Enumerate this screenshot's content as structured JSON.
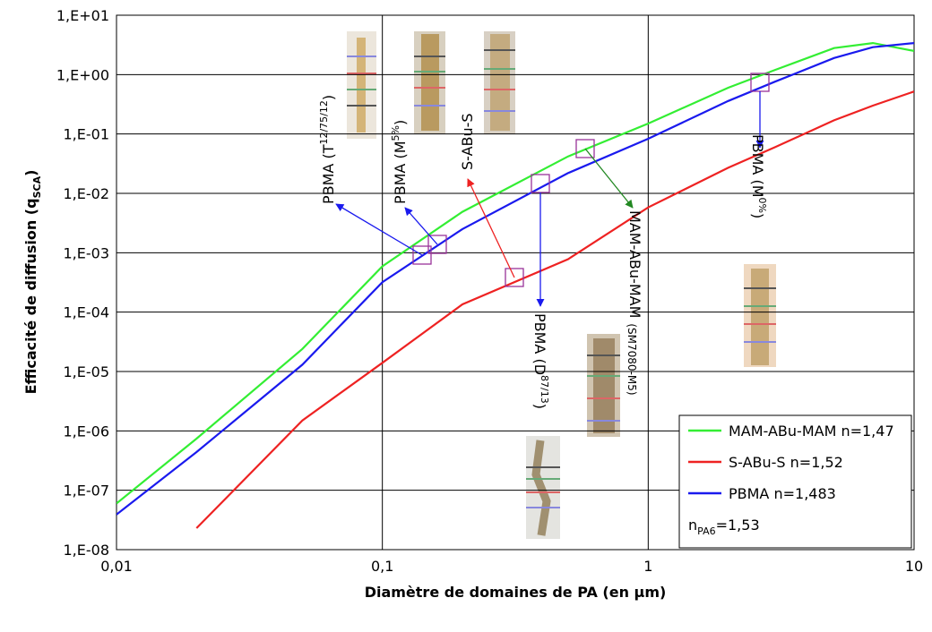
{
  "chart_data": {
    "type": "line",
    "x_label": "Diamètre de domaines de PA (en µm)",
    "y_label": {
      "text": "Efficacité de diffusion (q",
      "sub": "SCA",
      "tail": ")"
    },
    "x": [
      0.01,
      0.02,
      0.05,
      0.1,
      0.2,
      0.5,
      1,
      2,
      3,
      5,
      7,
      10
    ],
    "series": [
      {
        "name": "MAM-ABu-MAM n=1,47",
        "color": "#33ee33",
        "values": [
          6e-08,
          7.4e-07,
          2.4e-05,
          0.00059,
          0.0049,
          0.042,
          0.15,
          0.6,
          1.2,
          2.8,
          3.4,
          2.5
        ]
      },
      {
        "name": "S-ABu-S n=1,52",
        "color": "#ee2222",
        "values": [
          null,
          2.3e-08,
          1.5e-06,
          1.4e-05,
          0.000135,
          0.00078,
          0.0058,
          0.027,
          0.06,
          0.17,
          0.3,
          0.52
        ]
      },
      {
        "name": "PBMA n=1,483",
        "color": "#1a1aee",
        "values": [
          3.9e-08,
          4.4e-07,
          1.3e-05,
          0.00032,
          0.0025,
          0.022,
          0.083,
          0.36,
          0.76,
          1.9,
          2.9,
          3.4
        ]
      }
    ],
    "legend_note": {
      "text": "n",
      "sub": "PA6",
      "tail": "=1,53"
    },
    "xlim": [
      0.01,
      10
    ],
    "xscale": "log",
    "xticks": [
      {
        "value": 0.01,
        "label": "0,01"
      },
      {
        "value": 0.1,
        "label": "0,1"
      },
      1,
      10
    ],
    "ylim": [
      1e-08,
      10
    ],
    "yscale": "log",
    "yticks": [
      {
        "value": 1e-08,
        "label": "1,E-08"
      },
      {
        "value": 1e-07,
        "label": "1,E-07"
      },
      {
        "value": 1e-06,
        "label": "1,E-06"
      },
      {
        "value": 1e-05,
        "label": "1,E-05"
      },
      {
        "value": 0.0001,
        "label": "1,E-04"
      },
      {
        "value": 0.001,
        "label": "1,E-03"
      },
      {
        "value": 0.01,
        "label": "1,E-02"
      },
      {
        "value": 0.1,
        "label": "1,E-01"
      },
      {
        "value": 1,
        "label": "1,E+00"
      },
      {
        "value": 10,
        "label": "1,E+01"
      }
    ],
    "grid": true,
    "legend": "lower right",
    "annotations": [
      {
        "text": "PBMA (T",
        "sup": "12/75/12",
        "tail": ")"
      },
      {
        "text": "PBMA (M",
        "sup": "5%",
        "tail": ")"
      },
      {
        "text": "S-ABu-S"
      },
      {
        "text": "MAM-ABu-MAM",
        "small": "(SM7080-M5)"
      },
      {
        "text": "PBMA (M",
        "sup": "0%",
        "tail": ")"
      },
      {
        "text": "PBMA (D",
        "sup": "87/13",
        "tail": ")"
      }
    ]
  }
}
